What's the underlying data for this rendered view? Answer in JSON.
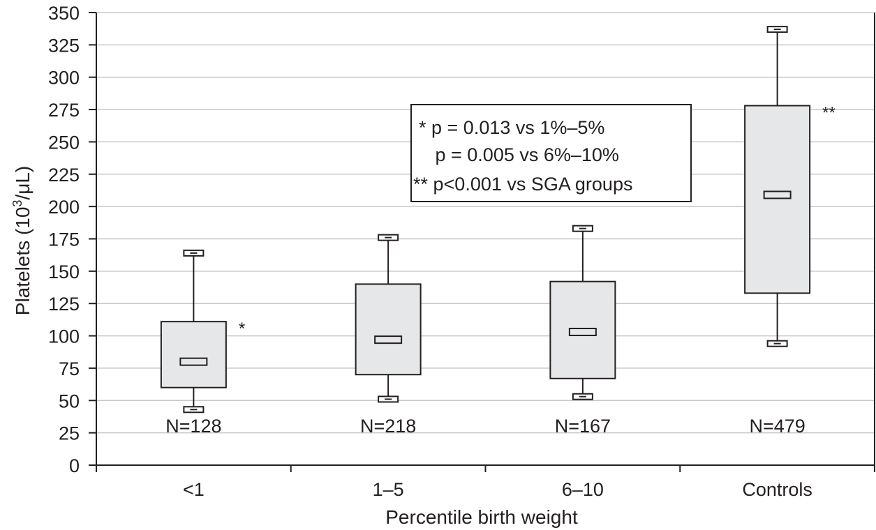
{
  "chart_data": {
    "type": "boxplot",
    "title": "",
    "xlabel": "Percentile birth weight",
    "ylabel": "Platelets (10³/μL)",
    "ylabel_parts": {
      "main": "Platelets (10",
      "sup": "3",
      "tail": "/μL)"
    },
    "ylim": [
      0,
      350
    ],
    "yticks": [
      0,
      25,
      50,
      75,
      100,
      125,
      150,
      175,
      200,
      225,
      250,
      275,
      300,
      325,
      350
    ],
    "grid": true,
    "categories": [
      "<1",
      "1–5",
      "6–10",
      "Controls"
    ],
    "groups": [
      {
        "label": "<1",
        "n_label": "N=128",
        "whisker_low": 43,
        "q1": 60,
        "median": 80,
        "q3": 111,
        "whisker_high": 164,
        "significance": "*"
      },
      {
        "label": "1–5",
        "n_label": "N=218",
        "whisker_low": 51,
        "q1": 70,
        "median": 97,
        "q3": 140,
        "whisker_high": 176,
        "significance": ""
      },
      {
        "label": "6–10",
        "n_label": "N=167",
        "whisker_low": 53,
        "q1": 67,
        "median": 103,
        "q3": 142,
        "whisker_high": 183,
        "significance": ""
      },
      {
        "label": "Controls",
        "n_label": "N=479",
        "whisker_low": 94,
        "q1": 133,
        "median": 209,
        "q3": 278,
        "whisker_high": 337,
        "significance": "**"
      }
    ],
    "legend": {
      "placement": "top-center",
      "lines": [
        "* p = 0.013 vs 1%–5%",
        "   p = 0.005 vs 6%–10%",
        "** p<0.001 vs SGA groups"
      ]
    },
    "colors": {
      "box_fill": "#e6e7e8",
      "stroke": "#231f20",
      "grid": "#c8c8c8"
    }
  }
}
